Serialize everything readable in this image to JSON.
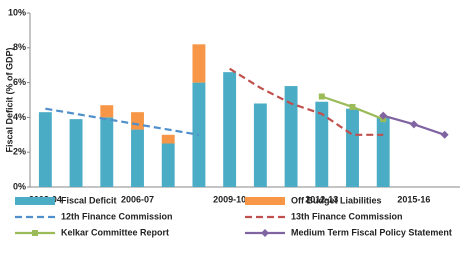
{
  "chart_data": {
    "type": "combo",
    "y_label": "Fiscal Deficit (% of GDP)",
    "categories": [
      "2003-04",
      null,
      null,
      "2006-07",
      null,
      null,
      "2009-10",
      null,
      null,
      "2012-13",
      null,
      null,
      "2015-16",
      null
    ],
    "ylim": [
      0,
      10
    ],
    "yticks": [
      {
        "value": 0,
        "label": "0%"
      },
      {
        "value": 2,
        "label": "2%"
      },
      {
        "value": 4,
        "label": "4%"
      },
      {
        "value": 6,
        "label": "6%"
      },
      {
        "value": 8,
        "label": "8%"
      },
      {
        "value": 10,
        "label": "10%"
      }
    ],
    "series": [
      {
        "name": "Fiscal Deficit",
        "type": "bar",
        "color": "#4bacc6",
        "values": [
          4.3,
          3.9,
          4.0,
          3.3,
          2.5,
          6.0,
          6.6,
          4.8,
          5.8,
          4.9,
          4.5,
          4.0,
          null,
          null
        ]
      },
      {
        "name": "Off Budget Liabilities",
        "type": "bar",
        "color": "#f79646",
        "values": [
          null,
          null,
          0.7,
          1.0,
          0.5,
          2.2,
          null,
          null,
          null,
          null,
          null,
          null,
          null,
          null
        ]
      },
      {
        "name": "12th Finance Commission",
        "type": "line",
        "dash": true,
        "color": "#4f8fcc",
        "values": [
          4.5,
          4.2,
          3.9,
          3.6,
          3.3,
          3.0,
          null,
          null,
          null,
          null,
          null,
          null,
          null,
          null
        ]
      },
      {
        "name": "13th Finance Commission",
        "type": "line",
        "dash": true,
        "color": "#c0504d",
        "values": [
          null,
          null,
          null,
          null,
          null,
          null,
          6.8,
          5.7,
          4.8,
          4.2,
          3.0,
          3.0,
          null,
          null
        ]
      },
      {
        "name": "Kelkar Committee Report",
        "type": "line",
        "marker": "square",
        "color": "#9bbb59",
        "values": [
          null,
          null,
          null,
          null,
          null,
          null,
          null,
          null,
          null,
          5.2,
          4.6,
          3.9,
          null,
          null
        ]
      },
      {
        "name": "Medium Term Fiscal Policy Statement",
        "type": "line",
        "marker": "diamond",
        "color": "#8064a2",
        "values": [
          null,
          null,
          null,
          null,
          null,
          null,
          null,
          null,
          null,
          null,
          null,
          4.1,
          3.6,
          3.0
        ]
      }
    ]
  }
}
